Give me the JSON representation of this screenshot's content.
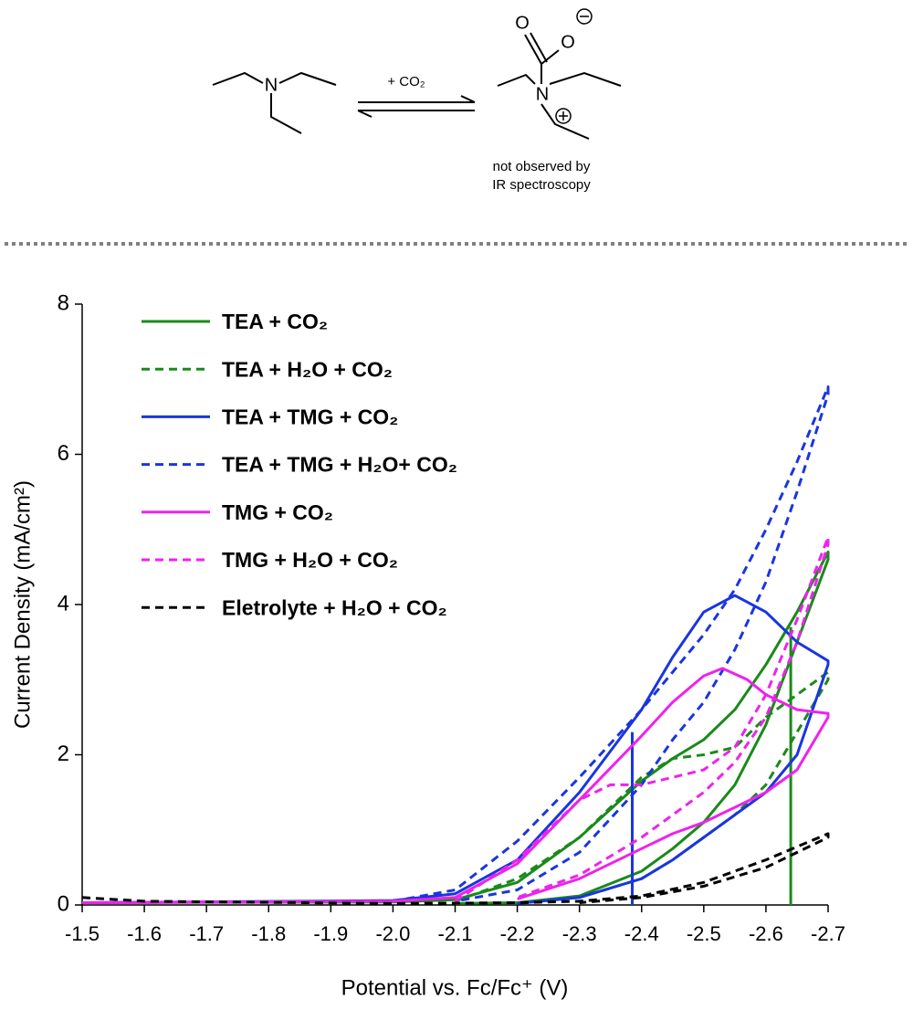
{
  "scheme": {
    "reagent": "+ CO₂",
    "amine_atom": "N",
    "product_atoms": [
      "O",
      "O",
      "N"
    ],
    "note": [
      "not observed by",
      "IR spectroscopy"
    ]
  },
  "chart_data": {
    "type": "line",
    "x_label": "Potential vs. Fc/Fc⁺ (V)",
    "y_label": "Current Density (mA/cm²)",
    "xlim": [
      -1.5,
      -2.7
    ],
    "ylim": [
      0,
      8
    ],
    "xticks": [
      -1.5,
      -1.6,
      -1.7,
      -1.8,
      -1.9,
      {
        "value": -2,
        "label": "-2.0"
      },
      -2.1,
      -2.2,
      -2.3,
      -2.4,
      -2.5,
      -2.6,
      -2.7
    ],
    "yticks": [
      0,
      2,
      4,
      6,
      8
    ],
    "legend": "upper-left",
    "series": [
      {
        "name": "TEA + CO₂",
        "color": "#1a8a1a",
        "style": "solid",
        "x": [
          -1.5,
          -2.0,
          -2.1,
          -2.2,
          -2.3,
          -2.4,
          -2.45,
          -2.5,
          -2.55,
          -2.6,
          -2.65,
          -2.7,
          -2.7,
          -2.65,
          -2.6,
          -2.55,
          -2.5,
          -2.45,
          -2.4,
          -2.3,
          -2.2,
          -2.1,
          null,
          -2.64,
          -2.64
        ],
        "values": [
          0.03,
          0.04,
          0.07,
          0.3,
          0.9,
          1.65,
          1.95,
          2.2,
          2.6,
          3.2,
          3.9,
          4.7,
          4.6,
          3.5,
          2.4,
          1.6,
          1.1,
          0.75,
          0.45,
          0.12,
          0.03,
          0.02,
          null,
          0,
          3.7
        ]
      },
      {
        "name": "TEA + H₂O + CO₂",
        "color": "#1a8a1a",
        "style": "dashed",
        "x": [
          -2.1,
          -2.2,
          -2.3,
          -2.4,
          -2.45,
          -2.5,
          -2.55,
          -2.6,
          -2.65,
          -2.7,
          -2.7,
          -2.65,
          -2.6,
          -2.55,
          -2.5,
          -2.45,
          -2.4,
          -2.3,
          -2.2
        ],
        "values": [
          0.05,
          0.35,
          0.9,
          1.7,
          1.95,
          2.0,
          2.1,
          2.5,
          2.8,
          3.1,
          3.0,
          2.3,
          1.6,
          1.2,
          0.9,
          0.6,
          0.35,
          0.1,
          0.02
        ]
      },
      {
        "name": "TEA + TMG + CO₂",
        "color": "#1a35e0",
        "style": "solid",
        "x": [
          -1.5,
          -2.0,
          -2.1,
          -2.2,
          -2.3,
          -2.4,
          -2.45,
          -2.5,
          -2.55,
          -2.6,
          -2.65,
          -2.7,
          -2.7,
          -2.65,
          -2.6,
          -2.55,
          -2.5,
          -2.45,
          -2.4,
          -2.3,
          -2.2,
          null,
          -2.385,
          -2.385
        ],
        "values": [
          0.03,
          0.06,
          0.15,
          0.6,
          1.5,
          2.6,
          3.3,
          3.9,
          4.12,
          3.9,
          3.5,
          3.25,
          3.2,
          2.0,
          1.5,
          1.2,
          0.9,
          0.6,
          0.35,
          0.1,
          0.02,
          null,
          0,
          2.3
        ]
      },
      {
        "name": "TEA + TMG + H₂O+ CO₂",
        "color": "#1a35e0",
        "style": "dashed",
        "x": [
          -2.0,
          -2.1,
          -2.2,
          -2.3,
          -2.4,
          -2.5,
          -2.55,
          -2.6,
          -2.65,
          -2.7,
          -2.7,
          -2.65,
          -2.6,
          -2.55,
          -2.5,
          -2.45,
          -2.4,
          -2.3,
          -2.2,
          -2.1
        ],
        "values": [
          0.05,
          0.2,
          0.85,
          1.7,
          2.6,
          3.6,
          4.2,
          5.0,
          5.9,
          6.9,
          6.8,
          5.5,
          4.3,
          3.4,
          2.7,
          2.2,
          1.6,
          0.7,
          0.2,
          0.05
        ]
      },
      {
        "name": "TMG + CO₂",
        "color": "#ee22ee",
        "style": "solid",
        "x": [
          -1.5,
          -2.0,
          -2.1,
          -2.2,
          -2.3,
          -2.4,
          -2.45,
          -2.5,
          -2.53,
          -2.57,
          -2.6,
          -2.65,
          -2.7,
          -2.7,
          -2.65,
          -2.6,
          -2.55,
          -2.5,
          -2.45,
          -2.4,
          -2.3,
          -2.2
        ],
        "values": [
          0.03,
          0.05,
          0.1,
          0.55,
          1.4,
          2.25,
          2.7,
          3.05,
          3.15,
          3.0,
          2.8,
          2.6,
          2.55,
          2.5,
          1.8,
          1.5,
          1.3,
          1.1,
          0.95,
          0.75,
          0.35,
          0.08
        ]
      },
      {
        "name": "TMG + H₂O + CO₂",
        "color": "#ee22ee",
        "style": "dashed",
        "x": [
          -2.1,
          -2.2,
          -2.3,
          -2.35,
          -2.4,
          -2.5,
          -2.55,
          -2.6,
          -2.65,
          -2.7,
          -2.7,
          -2.65,
          -2.6,
          -2.55,
          -2.5,
          -2.45,
          -2.4,
          -2.3,
          -2.2
        ],
        "values": [
          0.05,
          0.6,
          1.4,
          1.6,
          1.6,
          1.8,
          2.1,
          2.8,
          3.8,
          4.9,
          4.8,
          3.5,
          2.5,
          1.9,
          1.5,
          1.2,
          0.9,
          0.4,
          0.1
        ]
      },
      {
        "name": "Eletrolyte + H₂O + CO₂",
        "color": "#000000",
        "style": "dashed",
        "x": [
          -1.5,
          -1.6,
          -2.0,
          -2.2,
          -2.3,
          -2.4,
          -2.5,
          -2.6,
          -2.7,
          -2.7,
          -2.6,
          -2.5,
          -2.4,
          -2.3
        ],
        "values": [
          0.1,
          0.05,
          0.02,
          0.03,
          0.05,
          0.12,
          0.3,
          0.6,
          0.95,
          0.9,
          0.5,
          0.25,
          0.1,
          0.03
        ]
      }
    ]
  }
}
